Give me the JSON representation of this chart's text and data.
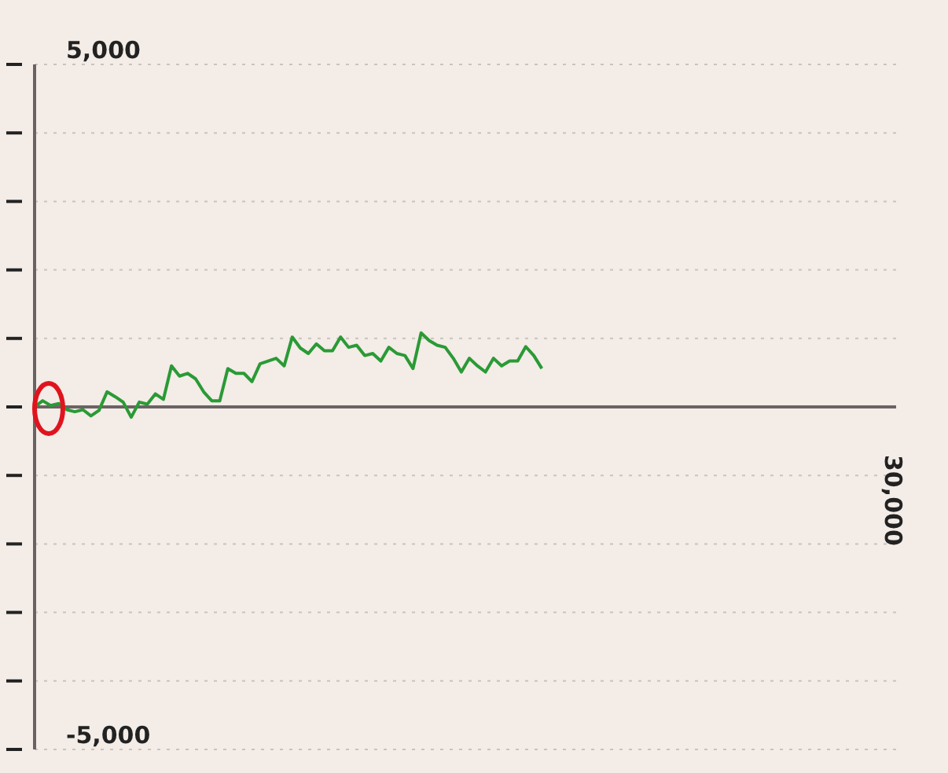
{
  "chart_data": {
    "type": "line",
    "categories": [
      null,
      null,
      null,
      null,
      null,
      null,
      null,
      null,
      null,
      null,
      null,
      null,
      null,
      null,
      null,
      null,
      null,
      null,
      null,
      null,
      null,
      null,
      null,
      null,
      null,
      null,
      null,
      null,
      null,
      null,
      null,
      null,
      null,
      null,
      null,
      null,
      null,
      null,
      null,
      null,
      null,
      null,
      null,
      null,
      null,
      null,
      null,
      null,
      null,
      null,
      null,
      null,
      null,
      null,
      null,
      null,
      null,
      null,
      null,
      null,
      null,
      null,
      null,
      null,
      null,
      null,
      null,
      null,
      null,
      null,
      null,
      null,
      null,
      null,
      null,
      null,
      null,
      null,
      null,
      null,
      null,
      null,
      null,
      null,
      null,
      null,
      null,
      null,
      null,
      null,
      null,
      null,
      null,
      null,
      null,
      null,
      null,
      null,
      null,
      null,
      null,
      null,
      null,
      null,
      null,
      null,
      null,
      null
    ],
    "series": [
      {
        "color": "#2a9a35",
        "values": [
          0,
          90,
          20,
          50,
          -40,
          -70,
          -40,
          -130,
          -50,
          220,
          150,
          70,
          -150,
          70,
          40,
          190,
          110,
          600,
          450,
          490,
          410,
          220,
          90,
          90,
          560,
          490,
          490,
          370,
          630,
          670,
          710,
          600,
          1020,
          860,
          780,
          920,
          820,
          820,
          1020,
          870,
          900,
          750,
          780,
          670,
          870,
          780,
          750,
          560,
          1080,
          970,
          900,
          870,
          710,
          510,
          710,
          600,
          510,
          710,
          600,
          670,
          670,
          880,
          750,
          560,
          null,
          null,
          null,
          null,
          null,
          null,
          null,
          null,
          null,
          null,
          null,
          null,
          null,
          null,
          null,
          null,
          null,
          null,
          null,
          null,
          null,
          null,
          null,
          null,
          null,
          null,
          null,
          null,
          null,
          null,
          null,
          null,
          null,
          null,
          null,
          null,
          null,
          null,
          null,
          null,
          null,
          null,
          null,
          null
        ]
      }
    ],
    "ylim": [
      -5000,
      5000
    ],
    "yticks": [
      {
        "value": -5000,
        "label": "-5,000"
      },
      {
        "value": -4000,
        "label": null
      },
      {
        "value": -3000,
        "label": null
      },
      {
        "value": -2000,
        "label": null
      },
      {
        "value": -1000,
        "label": null
      },
      {
        "value": 0,
        "label": null
      },
      {
        "value": 1000,
        "label": null
      },
      {
        "value": 2000,
        "label": null
      },
      {
        "value": 3000,
        "label": null
      },
      {
        "value": 4000,
        "label": null
      },
      {
        "value": 5000,
        "label": "5,000"
      }
    ],
    "ref_lines": [
      {
        "axis": "y",
        "value": 0,
        "color": "#6b6363"
      }
    ],
    "annotations": [
      "30,000"
    ],
    "grid": "y",
    "marker": "none",
    "line_style": "solid"
  }
}
